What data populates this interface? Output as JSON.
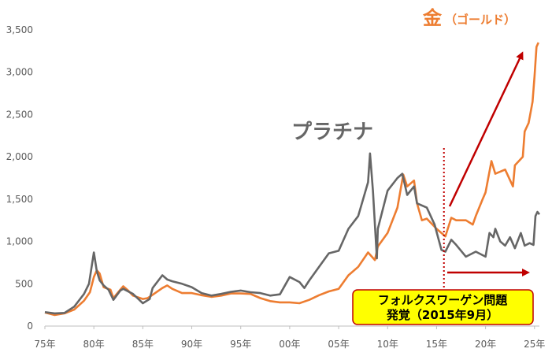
{
  "colors": {
    "gold": "#ED7D31",
    "platinum": "#666666",
    "arrow": "#C00000",
    "box_fill": "#FFFF00",
    "box_stroke": "#C00000",
    "axis": "#BFBFBF",
    "text": "#595959"
  },
  "chart_data": {
    "type": "line",
    "title": "",
    "xlabel": "",
    "ylabel": "",
    "xlim": [
      1975,
      2025.5
    ],
    "ylim": [
      0,
      3500
    ],
    "grid": false,
    "legend": "none",
    "x_ticks": [
      1975,
      1980,
      1985,
      1990,
      1995,
      2000,
      2005,
      2010,
      2015,
      2020,
      2025
    ],
    "x_tick_labels": [
      "75年",
      "80年",
      "85年",
      "90年",
      "95年",
      "00年",
      "05年",
      "10年",
      "15年",
      "20年",
      "25年"
    ],
    "y_ticks": [
      0,
      500,
      1000,
      1500,
      2000,
      2500,
      3000,
      3500
    ],
    "y_tick_labels": [
      "0",
      "500",
      "1,000",
      "1,500",
      "2,000",
      "2,500",
      "3,000",
      "3,500"
    ],
    "series": [
      {
        "name": "金（ゴールド）",
        "color": "#ED7D31",
        "points": [
          [
            1975,
            160
          ],
          [
            1976,
            130
          ],
          [
            1977,
            150
          ],
          [
            1978,
            195
          ],
          [
            1979,
            300
          ],
          [
            1979.6,
            400
          ],
          [
            1980,
            580
          ],
          [
            1980.3,
            660
          ],
          [
            1980.6,
            620
          ],
          [
            1981,
            460
          ],
          [
            1981.7,
            430
          ],
          [
            1982,
            330
          ],
          [
            1982.7,
            430
          ],
          [
            1983,
            470
          ],
          [
            1983.5,
            420
          ],
          [
            1984,
            360
          ],
          [
            1985,
            320
          ],
          [
            1985.5,
            330
          ],
          [
            1986,
            370
          ],
          [
            1987,
            450
          ],
          [
            1987.5,
            480
          ],
          [
            1988,
            440
          ],
          [
            1989,
            390
          ],
          [
            1990,
            390
          ],
          [
            1991,
            365
          ],
          [
            1992,
            345
          ],
          [
            1993,
            360
          ],
          [
            1994,
            385
          ],
          [
            1995,
            385
          ],
          [
            1996,
            380
          ],
          [
            1997,
            330
          ],
          [
            1998,
            295
          ],
          [
            1999,
            280
          ],
          [
            2000,
            280
          ],
          [
            2001,
            270
          ],
          [
            2002,
            310
          ],
          [
            2003,
            365
          ],
          [
            2004,
            410
          ],
          [
            2005,
            440
          ],
          [
            2006,
            600
          ],
          [
            2007,
            700
          ],
          [
            2008,
            870
          ],
          [
            2008.7,
            780
          ],
          [
            2009,
            940
          ],
          [
            2010,
            1100
          ],
          [
            2011,
            1400
          ],
          [
            2011.6,
            1790
          ],
          [
            2012,
            1650
          ],
          [
            2012.7,
            1720
          ],
          [
            2013,
            1450
          ],
          [
            2013.5,
            1250
          ],
          [
            2014,
            1270
          ],
          [
            2015,
            1150
          ],
          [
            2015.9,
            1060
          ],
          [
            2016.5,
            1280
          ],
          [
            2017,
            1250
          ],
          [
            2018,
            1250
          ],
          [
            2018.7,
            1200
          ],
          [
            2019,
            1300
          ],
          [
            2019.7,
            1500
          ],
          [
            2020,
            1580
          ],
          [
            2020.6,
            1950
          ],
          [
            2021,
            1800
          ],
          [
            2022,
            1850
          ],
          [
            2022.8,
            1650
          ],
          [
            2023,
            1900
          ],
          [
            2023.8,
            2000
          ],
          [
            2024,
            2300
          ],
          [
            2024.4,
            2400
          ],
          [
            2024.8,
            2650
          ],
          [
            2025,
            2950
          ],
          [
            2025.2,
            3300
          ],
          [
            2025.4,
            3350
          ]
        ]
      },
      {
        "name": "プラチナ",
        "color": "#666666",
        "points": [
          [
            1975,
            165
          ],
          [
            1976,
            150
          ],
          [
            1977,
            155
          ],
          [
            1978,
            230
          ],
          [
            1979,
            380
          ],
          [
            1979.5,
            500
          ],
          [
            1980,
            870
          ],
          [
            1980.3,
            650
          ],
          [
            1980.6,
            540
          ],
          [
            1981,
            480
          ],
          [
            1981.5,
            430
          ],
          [
            1982,
            310
          ],
          [
            1982.7,
            420
          ],
          [
            1983,
            440
          ],
          [
            1984,
            380
          ],
          [
            1985,
            270
          ],
          [
            1985.7,
            320
          ],
          [
            1986,
            450
          ],
          [
            1987,
            600
          ],
          [
            1987.5,
            550
          ],
          [
            1988,
            530
          ],
          [
            1989,
            500
          ],
          [
            1990,
            460
          ],
          [
            1991,
            390
          ],
          [
            1992,
            360
          ],
          [
            1993,
            380
          ],
          [
            1994,
            405
          ],
          [
            1995,
            420
          ],
          [
            1996,
            400
          ],
          [
            1997,
            390
          ],
          [
            1998,
            360
          ],
          [
            1999,
            375
          ],
          [
            2000,
            580
          ],
          [
            2001,
            520
          ],
          [
            2001.5,
            450
          ],
          [
            2002,
            540
          ],
          [
            2003,
            700
          ],
          [
            2004,
            860
          ],
          [
            2005,
            890
          ],
          [
            2006,
            1150
          ],
          [
            2007,
            1300
          ],
          [
            2008,
            1700
          ],
          [
            2008.2,
            2040
          ],
          [
            2008.5,
            1600
          ],
          [
            2008.9,
            800
          ],
          [
            2009,
            1150
          ],
          [
            2010,
            1600
          ],
          [
            2011,
            1750
          ],
          [
            2011.5,
            1800
          ],
          [
            2012,
            1550
          ],
          [
            2012.7,
            1650
          ],
          [
            2013,
            1450
          ],
          [
            2014,
            1400
          ],
          [
            2014.8,
            1200
          ],
          [
            2015.5,
            900
          ],
          [
            2015.9,
            880
          ],
          [
            2016.5,
            1020
          ],
          [
            2017,
            960
          ],
          [
            2018,
            820
          ],
          [
            2019,
            880
          ],
          [
            2020,
            820
          ],
          [
            2020.4,
            1100
          ],
          [
            2020.8,
            1050
          ],
          [
            2021,
            1150
          ],
          [
            2021.5,
            1000
          ],
          [
            2022,
            950
          ],
          [
            2022.5,
            1050
          ],
          [
            2023,
            920
          ],
          [
            2023.6,
            1100
          ],
          [
            2024,
            950
          ],
          [
            2024.5,
            980
          ],
          [
            2024.9,
            960
          ],
          [
            2025.1,
            1300
          ],
          [
            2025.3,
            1350
          ],
          [
            2025.5,
            1320
          ]
        ]
      }
    ],
    "annotations": {
      "gold_label_main": "金",
      "gold_label_sub": "（ゴールド）",
      "platinum_label": "プラチナ",
      "event_line1": "フォルクスワーゲン問題",
      "event_line2": "発覚（2015年9月）",
      "event_x": 2015.75
    }
  }
}
